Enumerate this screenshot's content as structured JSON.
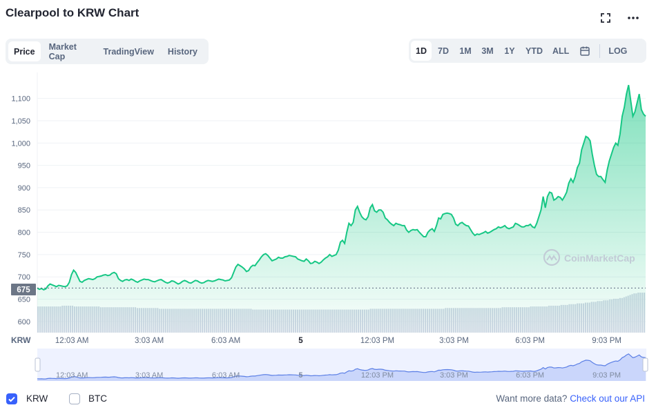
{
  "title": "Clearpool to KRW Chart",
  "icons": {
    "fullscreen": "fullscreen-icon",
    "more": "more-icon",
    "calendar": "calendar-icon",
    "checkbox_checked": "checkmark-icon"
  },
  "tabs": [
    {
      "label": "Price",
      "active": true
    },
    {
      "label": "Market Cap",
      "active": false
    },
    {
      "label": "TradingView",
      "active": false
    },
    {
      "label": "History",
      "active": false
    }
  ],
  "ranges": [
    {
      "label": "1D",
      "active": true
    },
    {
      "label": "7D",
      "active": false
    },
    {
      "label": "1M",
      "active": false
    },
    {
      "label": "3M",
      "active": false
    },
    {
      "label": "1Y",
      "active": false
    },
    {
      "label": "YTD",
      "active": false
    },
    {
      "label": "ALL",
      "active": false
    }
  ],
  "log_label": "LOG",
  "colors": {
    "line": "#16c784",
    "accent": "#3861fb",
    "volume": "#cfd6e4",
    "open_marker": "#58667e"
  },
  "chart_data": {
    "type": "area",
    "currency_label": "KRW",
    "open_price_label": "675",
    "open_price": 675,
    "ylim": [
      575,
      1135
    ],
    "yticks": [
      600,
      650,
      700,
      750,
      800,
      850,
      900,
      950,
      1000,
      1050,
      1100
    ],
    "ytick_labels": [
      "600",
      "650",
      "700",
      "750",
      "800",
      "850",
      "900",
      "950",
      "1,000",
      "1,050",
      "1,100"
    ],
    "xtick_labels": [
      "12:03 AM",
      "3:03 AM",
      "6:03 AM",
      "5",
      "12:03 PM",
      "3:03 PM",
      "6:03 PM",
      "9:03 PM"
    ],
    "xtick_positions": [
      0.057,
      0.184,
      0.31,
      0.433,
      0.559,
      0.685,
      0.81,
      0.936
    ],
    "watermark": "CoinMarketCap",
    "series": [
      {
        "values": [
          675,
          672,
          674,
          671,
          673,
          680,
          684,
          682,
          680,
          678,
          681,
          680,
          679,
          678,
          680,
          688,
          705,
          715,
          710,
          700,
          690,
          688,
          692,
          694,
          696,
          695,
          694,
          696,
          700,
          701,
          702,
          704,
          705,
          703,
          704,
          708,
          710,
          707,
          696,
          692,
          690,
          693,
          694,
          692,
          695,
          693,
          690,
          688,
          691,
          693,
          695,
          694,
          694,
          692,
          690,
          689,
          691,
          693,
          694,
          691,
          688,
          686,
          688,
          691,
          690,
          687,
          684,
          686,
          690,
          692,
          690,
          687,
          686,
          689,
          692,
          691,
          688,
          686,
          687,
          690,
          692,
          691,
          690,
          691,
          693,
          695,
          694,
          693,
          691,
          692,
          693,
          698,
          710,
          722,
          728,
          725,
          722,
          718,
          712,
          714,
          722,
          726,
          725,
          732,
          738,
          745,
          750,
          752,
          748,
          742,
          736,
          738,
          740,
          744,
          742,
          742,
          745,
          746,
          748,
          747,
          746,
          745,
          740,
          738,
          736,
          735,
          740,
          736,
          730,
          731,
          735,
          733,
          730,
          733,
          738,
          742,
          745,
          750,
          746,
          748,
          750,
          760,
          778,
          782,
          775,
          800,
          820,
          815,
          822,
          850,
          858,
          845,
          835,
          830,
          828,
          835,
          855,
          862,
          848,
          845,
          850,
          850,
          845,
          832,
          828,
          822,
          818,
          815,
          820,
          818,
          817,
          815,
          815,
          805,
          800,
          804,
          806,
          805,
          806,
          800,
          795,
          790,
          790,
          800,
          805,
          808,
          802,
          815,
          832,
          830,
          840,
          842,
          843,
          842,
          840,
          832,
          818,
          815,
          820,
          822,
          818,
          815,
          814,
          806,
          798,
          793,
          796,
          795,
          797,
          799,
          802,
          798,
          800,
          803,
          806,
          808,
          812,
          810,
          812,
          815,
          810,
          808,
          810,
          812,
          820,
          818,
          815,
          812,
          812,
          815,
          815,
          818,
          812,
          810,
          820,
          835,
          850,
          880,
          855,
          880,
          890,
          888,
          872,
          875,
          880,
          878,
          872,
          880,
          890,
          910,
          920,
          912,
          925,
          945,
          955,
          985,
          1000,
          1015,
          1012,
          1005,
          975,
          950,
          930,
          925,
          925,
          918,
          912,
          940,
          960,
          975,
          990,
          1000,
          995,
          1020,
          1060,
          1080,
          1110,
          1130,
          1095,
          1060,
          1070,
          1090,
          1110,
          1075,
          1065,
          1060
        ]
      }
    ],
    "volume": [
      34,
      34,
      34,
      34,
      34,
      34,
      34,
      34,
      34,
      34,
      34,
      34,
      35,
      35,
      35,
      35,
      35,
      35,
      34,
      34,
      34,
      34,
      34,
      34,
      34,
      34,
      34,
      34,
      34,
      34,
      34,
      33,
      33,
      33,
      33,
      33,
      33,
      33,
      33,
      33,
      33,
      33,
      33,
      33,
      33,
      33,
      33,
      33,
      33,
      32,
      32,
      32,
      32,
      32,
      32,
      32,
      32,
      32,
      32,
      32,
      31,
      31,
      31,
      31,
      31,
      31,
      31,
      31,
      31,
      31,
      31,
      31,
      31,
      31,
      31,
      31,
      31,
      31,
      31,
      31,
      31,
      31,
      31,
      31,
      31,
      31,
      31,
      31,
      31,
      31,
      31,
      31,
      31,
      31,
      31,
      31,
      31,
      31,
      31,
      31,
      31,
      31,
      31,
      31,
      31,
      31,
      30,
      30,
      30,
      30,
      30,
      30,
      30,
      30,
      30,
      30,
      30,
      30,
      30,
      30,
      30,
      30,
      30,
      30,
      30,
      30,
      30,
      30,
      30,
      30,
      30,
      30,
      30,
      30,
      30,
      30,
      30,
      30,
      30,
      30,
      30,
      30,
      30,
      30,
      30,
      30,
      30,
      30,
      30,
      30,
      30,
      30,
      30,
      30,
      30,
      30,
      30,
      30,
      30,
      30,
      30,
      30,
      30,
      30,
      31,
      31,
      31,
      31,
      31,
      31,
      31,
      31,
      31,
      31,
      31,
      31,
      31,
      31,
      31,
      31,
      31,
      31,
      31,
      31,
      31,
      31,
      31,
      31,
      31,
      31,
      31,
      31,
      31,
      31,
      31,
      31,
      31,
      31,
      31,
      31,
      31,
      32,
      32,
      32,
      32,
      32,
      32,
      32,
      32,
      32,
      32,
      32,
      32,
      32,
      32,
      32,
      32,
      32,
      32,
      32,
      32,
      32,
      32,
      32,
      32,
      32,
      32,
      32,
      32,
      33,
      33,
      33,
      33,
      33,
      33,
      33,
      33,
      33,
      33,
      33,
      33,
      33,
      33,
      34,
      34,
      34,
      34,
      34,
      34,
      34,
      34,
      34,
      35,
      35,
      35,
      35,
      35,
      35,
      36,
      36,
      36,
      36,
      37,
      37,
      37,
      37,
      38,
      38,
      38,
      38,
      39,
      39,
      39,
      40,
      40,
      40,
      41,
      41,
      41,
      42,
      42,
      42,
      43,
      43,
      44,
      44,
      44,
      45,
      45,
      46,
      47,
      48,
      49,
      50,
      51,
      51,
      52,
      52,
      52,
      52
    ],
    "legend": [
      {
        "label": "KRW",
        "checked": true
      },
      {
        "label": "BTC",
        "checked": false
      }
    ]
  },
  "footer": {
    "prompt": "Want more data?",
    "link": "Check out our API"
  }
}
